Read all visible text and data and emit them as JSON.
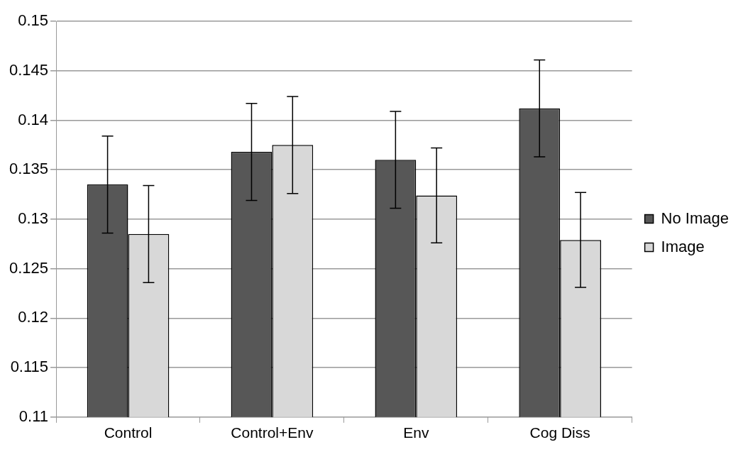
{
  "chart_data": {
    "type": "bar",
    "categories": [
      "Control",
      "Control+Env",
      "Env",
      "Cog Diss"
    ],
    "series": [
      {
        "name": "No Image",
        "color": "#575757",
        "values": [
          0.1335,
          0.1368,
          0.136,
          0.1412
        ],
        "errors": [
          0.0049,
          0.0049,
          0.0049,
          0.0049
        ]
      },
      {
        "name": "Image",
        "color": "#d8d8d8",
        "values": [
          0.1285,
          0.1375,
          0.1324,
          0.1279
        ],
        "errors": [
          0.0049,
          0.0049,
          0.0048,
          0.0048
        ]
      }
    ],
    "ylim": [
      0.11,
      0.15
    ],
    "yticks": [
      0.11,
      0.115,
      0.12,
      0.125,
      0.13,
      0.135,
      0.14,
      0.145,
      0.15
    ],
    "grid": "y",
    "legend": "right"
  }
}
